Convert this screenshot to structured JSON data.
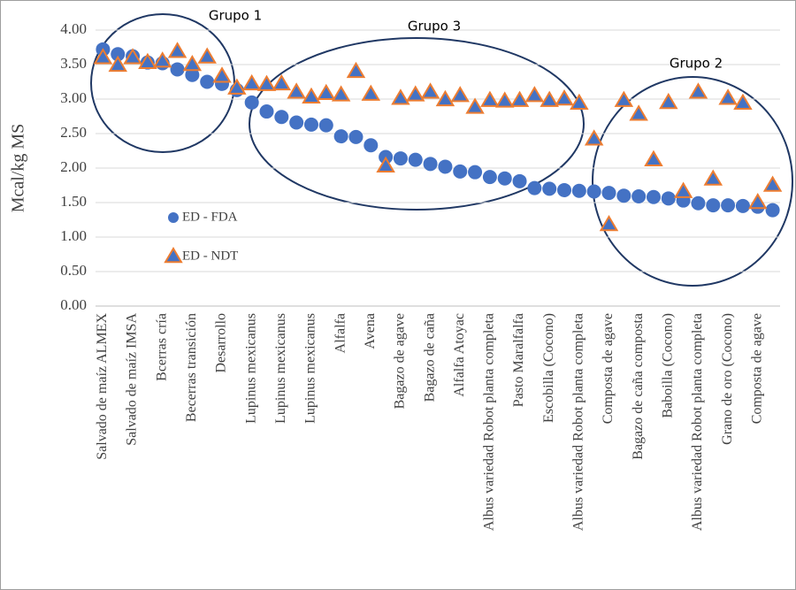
{
  "chart_data": {
    "type": "scatter",
    "y_label": "Mcal/kg MS",
    "categories": [
      "Salvado de maíz ALMEX",
      null,
      "Salvado de maíz IMSA",
      null,
      "Bcerras cría",
      null,
      "Becerras transición",
      null,
      "Desarrollo",
      null,
      "Lupinus mexicanus",
      null,
      "Lupinus mexicanus",
      null,
      "Lupinus mexicanus",
      null,
      "Alfalfa",
      null,
      "Avena",
      null,
      "Bagazo de agave",
      null,
      "Bagazo de caña",
      null,
      "Alfalfa Atoyac",
      null,
      "Albus variedad Robot planta completa",
      null,
      "Pasto Maralfalfa",
      null,
      "Escobilla (Cocono)",
      null,
      "Albus variedad Robot planta completa",
      null,
      "Composta de agave",
      null,
      "Bagazo de caña composta",
      null,
      "Baboilla (Cocono)",
      null,
      "Albus variedad Robot planta completa",
      null,
      "Grano de oro (Cocono)",
      null,
      "Composta de agave",
      null
    ],
    "series": [
      {
        "name": "ED - FDA",
        "marker": "circle",
        "color": "#4472c4",
        "values": [
          3.72,
          3.65,
          3.62,
          3.53,
          3.52,
          3.43,
          3.35,
          3.25,
          3.22,
          3.13,
          2.95,
          2.82,
          2.74,
          2.66,
          2.63,
          2.62,
          2.46,
          2.45,
          2.33,
          2.16,
          2.14,
          2.12,
          2.06,
          2.02,
          1.95,
          1.94,
          1.87,
          1.85,
          1.81,
          1.71,
          1.7,
          1.68,
          1.67,
          1.66,
          1.64,
          1.6,
          1.59,
          1.58,
          1.56,
          1.53,
          1.49,
          1.46,
          1.46,
          1.45,
          1.44,
          1.39
        ]
      },
      {
        "name": "ED - NDT",
        "marker": "triangle",
        "color": "#4472c4",
        "edge_color": "#ed7d31",
        "values": [
          3.6,
          3.49,
          3.6,
          3.53,
          3.55,
          3.69,
          3.5,
          3.61,
          3.33,
          3.16,
          3.22,
          3.21,
          3.22,
          3.1,
          3.03,
          3.08,
          3.06,
          3.4,
          3.07,
          2.03,
          3.01,
          3.06,
          3.1,
          2.99,
          3.05,
          2.88,
          2.98,
          2.97,
          2.98,
          3.05,
          2.98,
          3.0,
          2.94,
          2.42,
          1.18,
          2.98,
          2.78,
          2.12,
          2.95,
          1.66,
          3.1,
          1.84,
          3.01,
          2.94,
          1.5,
          1.75
        ]
      }
    ],
    "ylim": [
      0,
      4
    ],
    "yticks": [
      {
        "value": 0,
        "label": "0.00"
      },
      {
        "value": 0.5,
        "label": "0.50"
      },
      {
        "value": 1,
        "label": "1.00"
      },
      {
        "value": 1.5,
        "label": "1.50"
      },
      {
        "value": 2,
        "label": "2.00"
      },
      {
        "value": 2.5,
        "label": "2.50"
      },
      {
        "value": 3,
        "label": "3.00"
      },
      {
        "value": 3.5,
        "label": "3.50"
      },
      {
        "value": 4,
        "label": "4.00"
      }
    ],
    "grid": true,
    "legend": "left",
    "annotations": [
      "Grupo 1",
      "Grupo 3",
      "Grupo 2"
    ]
  }
}
